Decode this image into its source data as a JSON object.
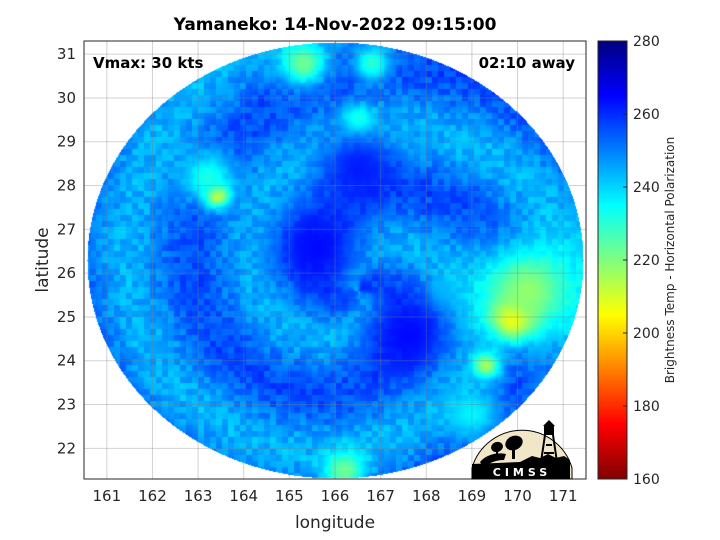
{
  "chart_data": {
    "type": "heatmap",
    "title": "Yamaneko: 14-Nov-2022 09:15:00",
    "xlabel": "longitude",
    "ylabel": "latitude",
    "xlim": [
      160.5,
      171.5
    ],
    "ylim": [
      21.3,
      31.3
    ],
    "xticks": [
      161,
      162,
      163,
      164,
      165,
      166,
      167,
      168,
      169,
      170,
      171
    ],
    "yticks": [
      22,
      23,
      24,
      25,
      26,
      27,
      28,
      29,
      30,
      31
    ],
    "grid": true,
    "annotations": {
      "vmax": "Vmax: 30 kts",
      "time_away": "02:10 away"
    },
    "colorbar": {
      "label": "Brightness Temp - Horizontal Polarization",
      "range": [
        160,
        280
      ],
      "ticks": [
        160,
        180,
        200,
        220,
        240,
        260,
        280
      ],
      "colormap": "jet"
    },
    "swath": {
      "center_lon": 166.0,
      "center_lat": 26.3,
      "background_value": 250
    },
    "features": [
      {
        "lon": 169.9,
        "lat": 25.0,
        "value": 188,
        "radius_deg": 0.45
      },
      {
        "lon": 170.2,
        "lat": 25.6,
        "value": 218,
        "radius_deg": 1.1
      },
      {
        "lon": 169.3,
        "lat": 23.9,
        "value": 215,
        "radius_deg": 0.3
      },
      {
        "lon": 163.4,
        "lat": 27.8,
        "value": 192,
        "radius_deg": 0.25
      },
      {
        "lon": 163.2,
        "lat": 28.2,
        "value": 232,
        "radius_deg": 0.6
      },
      {
        "lon": 165.3,
        "lat": 30.8,
        "value": 222,
        "radius_deg": 0.5
      },
      {
        "lon": 166.5,
        "lat": 29.5,
        "value": 228,
        "radius_deg": 0.35
      },
      {
        "lon": 166.8,
        "lat": 30.8,
        "value": 230,
        "radius_deg": 0.4
      },
      {
        "lon": 166.2,
        "lat": 21.5,
        "value": 222,
        "radius_deg": 0.45
      },
      {
        "lon": 169.0,
        "lat": 22.8,
        "value": 236,
        "radius_deg": 0.6
      },
      {
        "lon": 168.4,
        "lat": 25.5,
        "value": 240,
        "radius_deg": 0.35
      },
      {
        "lon": 165.6,
        "lat": 26.6,
        "value": 264,
        "radius_deg": 0.9
      },
      {
        "lon": 167.6,
        "lat": 24.6,
        "value": 264,
        "radius_deg": 0.9
      },
      {
        "lon": 166.5,
        "lat": 28.4,
        "value": 262,
        "radius_deg": 0.8
      }
    ]
  },
  "logo": {
    "text": "CIMSS"
  }
}
